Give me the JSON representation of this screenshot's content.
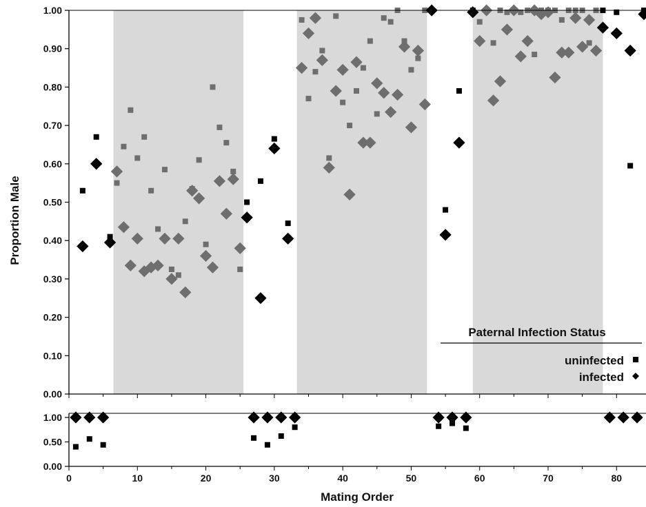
{
  "chart_data": [
    {
      "type": "scatter",
      "panel": "top",
      "ylabel": "Proportion Male",
      "xlim": [
        0,
        84
      ],
      "ylim": [
        0,
        1
      ],
      "yticks": [
        "0.00",
        "0.10",
        "0.20",
        "0.30",
        "0.40",
        "0.50",
        "0.60",
        "0.70",
        "0.80",
        "0.90",
        "1.00"
      ],
      "grid": false,
      "shaded_x_ranges": [
        [
          6.5,
          25.5
        ],
        [
          33.3,
          52.3
        ],
        [
          59,
          78
        ]
      ],
      "colors": {
        "outside_shading": "#000000",
        "inside_shading": "#6e6e6e",
        "shading": "#d9d9d9"
      },
      "legend": {
        "title": "Paternal Infection Status",
        "placement": "bottom-right",
        "entries": [
          {
            "label": "uninfected",
            "marker": "square"
          },
          {
            "label": "infected",
            "marker": "diamond"
          }
        ]
      },
      "series": [
        {
          "name": "uninfected",
          "marker": "square",
          "points": [
            [
              2,
              0.53
            ],
            [
              4,
              0.67
            ],
            [
              6,
              0.41
            ],
            [
              7,
              0.55
            ],
            [
              8,
              0.645
            ],
            [
              9,
              0.74
            ],
            [
              10,
              0.615
            ],
            [
              11,
              0.67
            ],
            [
              12,
              0.53
            ],
            [
              13,
              0.43
            ],
            [
              14,
              0.585
            ],
            [
              15,
              0.325
            ],
            [
              16,
              0.31
            ],
            [
              17,
              0.45
            ],
            [
              18,
              0.535
            ],
            [
              19,
              0.61
            ],
            [
              20,
              0.39
            ],
            [
              21,
              0.8
            ],
            [
              22,
              0.695
            ],
            [
              23,
              0.655
            ],
            [
              24,
              0.58
            ],
            [
              25,
              0.325
            ],
            [
              26,
              0.5
            ],
            [
              28,
              0.555
            ],
            [
              30,
              0.665
            ],
            [
              32,
              0.445
            ],
            [
              34,
              0.975
            ],
            [
              35,
              0.77
            ],
            [
              36,
              0.84
            ],
            [
              37,
              0.895
            ],
            [
              38,
              0.615
            ],
            [
              39,
              0.985
            ],
            [
              40,
              0.76
            ],
            [
              41,
              0.7
            ],
            [
              42,
              0.79
            ],
            [
              43,
              0.85
            ],
            [
              44,
              0.92
            ],
            [
              45,
              0.73
            ],
            [
              46,
              0.98
            ],
            [
              47,
              0.97
            ],
            [
              48,
              1.0
            ],
            [
              49,
              0.92
            ],
            [
              50,
              0.845
            ],
            [
              51,
              0.875
            ],
            [
              52,
              1.0
            ],
            [
              53,
              1.0
            ],
            [
              55,
              0.48
            ],
            [
              57,
              0.79
            ],
            [
              59,
              1.0
            ],
            [
              60,
              0.97
            ],
            [
              61,
              1.0
            ],
            [
              62,
              0.915
            ],
            [
              63,
              1.0
            ],
            [
              64,
              0.995
            ],
            [
              65,
              1.0
            ],
            [
              66,
              0.995
            ],
            [
              67,
              1.0
            ],
            [
              68,
              0.885
            ],
            [
              69,
              1.0
            ],
            [
              70,
              1.0
            ],
            [
              71,
              1.0
            ],
            [
              72,
              0.975
            ],
            [
              73,
              1.0
            ],
            [
              74,
              1.0
            ],
            [
              75,
              1.0
            ],
            [
              76,
              0.915
            ],
            [
              77,
              1.0
            ],
            [
              78,
              1.0
            ],
            [
              80,
              0.995
            ],
            [
              82,
              0.595
            ],
            [
              84,
              1.0
            ]
          ]
        },
        {
          "name": "infected",
          "marker": "diamond",
          "points": [
            [
              2,
              0.385
            ],
            [
              4,
              0.6
            ],
            [
              6,
              0.395
            ],
            [
              7,
              0.58
            ],
            [
              8,
              0.435
            ],
            [
              9,
              0.335
            ],
            [
              10,
              0.405
            ],
            [
              11,
              0.32
            ],
            [
              12,
              0.33
            ],
            [
              13,
              0.335
            ],
            [
              14,
              0.405
            ],
            [
              15,
              0.3
            ],
            [
              16,
              0.405
            ],
            [
              17,
              0.265
            ],
            [
              18,
              0.53
            ],
            [
              19,
              0.51
            ],
            [
              20,
              0.36
            ],
            [
              21,
              0.33
            ],
            [
              22,
              0.555
            ],
            [
              23,
              0.47
            ],
            [
              24,
              0.56
            ],
            [
              25,
              0.38
            ],
            [
              26,
              0.46
            ],
            [
              28,
              0.25
            ],
            [
              30,
              0.64
            ],
            [
              32,
              0.405
            ],
            [
              34,
              0.85
            ],
            [
              35,
              0.94
            ],
            [
              36,
              0.98
            ],
            [
              37,
              0.87
            ],
            [
              38,
              0.59
            ],
            [
              39,
              0.79
            ],
            [
              40,
              0.845
            ],
            [
              41,
              0.52
            ],
            [
              42,
              0.865
            ],
            [
              43,
              0.655
            ],
            [
              44,
              0.655
            ],
            [
              45,
              0.81
            ],
            [
              46,
              0.785
            ],
            [
              47,
              0.735
            ],
            [
              48,
              0.78
            ],
            [
              49,
              0.905
            ],
            [
              50,
              0.695
            ],
            [
              51,
              0.895
            ],
            [
              52,
              0.755
            ],
            [
              53,
              1.0
            ],
            [
              55,
              0.415
            ],
            [
              57,
              0.655
            ],
            [
              59,
              0.995
            ],
            [
              60,
              0.92
            ],
            [
              61,
              1.0
            ],
            [
              62,
              0.765
            ],
            [
              63,
              0.815
            ],
            [
              64,
              0.95
            ],
            [
              65,
              1.0
            ],
            [
              66,
              0.88
            ],
            [
              67,
              0.92
            ],
            [
              68,
              1.0
            ],
            [
              69,
              0.99
            ],
            [
              70,
              0.995
            ],
            [
              71,
              0.825
            ],
            [
              72,
              0.89
            ],
            [
              73,
              0.89
            ],
            [
              74,
              0.98
            ],
            [
              75,
              0.905
            ],
            [
              76,
              0.975
            ],
            [
              77,
              0.895
            ],
            [
              78,
              0.955
            ],
            [
              80,
              0.94
            ],
            [
              82,
              0.895
            ],
            [
              84,
              0.99
            ]
          ]
        }
      ]
    },
    {
      "type": "scatter",
      "panel": "bottom",
      "xlabel": "Mating Order",
      "xlim": [
        0,
        84
      ],
      "ylim": [
        0,
        1
      ],
      "xticks": [
        "0",
        "10",
        "20",
        "30",
        "40",
        "50",
        "60",
        "70",
        "80"
      ],
      "yticks": [
        "0.00",
        "0.50",
        "1.00"
      ],
      "grid": false,
      "series": [
        {
          "name": "uninfected",
          "marker": "square",
          "points": [
            [
              1,
              0.4
            ],
            [
              3,
              0.56
            ],
            [
              5,
              0.44
            ],
            [
              27,
              0.58
            ],
            [
              29,
              0.44
            ],
            [
              31,
              0.62
            ],
            [
              33,
              0.8
            ],
            [
              54,
              0.82
            ],
            [
              56,
              0.88
            ],
            [
              58,
              0.78
            ]
          ]
        },
        {
          "name": "infected",
          "marker": "diamond",
          "points": [
            [
              1,
              1.0
            ],
            [
              3,
              1.0
            ],
            [
              5,
              1.0
            ],
            [
              27,
              1.0
            ],
            [
              29,
              1.0
            ],
            [
              31,
              1.0
            ],
            [
              33,
              1.0
            ],
            [
              54,
              1.0
            ],
            [
              56,
              1.0
            ],
            [
              58,
              1.0
            ],
            [
              79,
              1.0
            ],
            [
              81,
              1.0
            ],
            [
              83,
              1.0
            ]
          ]
        }
      ]
    }
  ]
}
